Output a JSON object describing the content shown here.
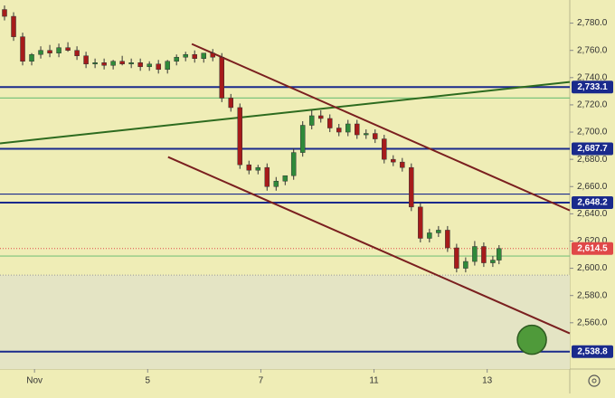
{
  "chart_data": {
    "type": "candlestick",
    "x": [
      -0.53,
      -0.37,
      -0.21,
      -0.05,
      0.11,
      0.27,
      0.43,
      0.59,
      0.75,
      0.91,
      1.07,
      1.23,
      1.39,
      1.55,
      1.71,
      1.87,
      2.03,
      2.19,
      2.35,
      2.51,
      2.67,
      2.83,
      2.99,
      3.15,
      3.31,
      3.47,
      3.63,
      3.79,
      3.95,
      4.11,
      4.27,
      4.43,
      4.58,
      4.74,
      4.9,
      5.06,
      5.22,
      5.38,
      5.54,
      5.7,
      5.86,
      6.02,
      6.18,
      6.34,
      6.5,
      6.66,
      6.82,
      6.98,
      7.14,
      7.3,
      7.46,
      7.62,
      7.78,
      7.94,
      8.1,
      8.21
    ],
    "open": [
      2790,
      2785,
      2770,
      2752,
      2757,
      2760,
      2758,
      2762,
      2760,
      2756,
      2750,
      2751,
      2749,
      2752,
      2750,
      2751,
      2748,
      2750,
      2746,
      2752,
      2755,
      2757,
      2754,
      2758,
      2755,
      2725,
      2718,
      2676,
      2672,
      2674,
      2660,
      2664,
      2668,
      2685,
      2705,
      2712,
      2710,
      2703,
      2700,
      2706,
      2698,
      2699,
      2695,
      2680,
      2678,
      2674,
      2645,
      2622,
      2626,
      2628,
      2615,
      2600,
      2605,
      2616,
      2604,
      2606
    ],
    "high": [
      2793,
      2788,
      2773,
      2758,
      2763,
      2764,
      2765,
      2766,
      2763,
      2759,
      2754,
      2754,
      2753,
      2756,
      2754,
      2754,
      2752,
      2753,
      2753,
      2757,
      2759,
      2760,
      2758,
      2761,
      2758,
      2728,
      2721,
      2679,
      2676,
      2677,
      2667,
      2668,
      2688,
      2708,
      2716,
      2716,
      2713,
      2706,
      2709,
      2709,
      2702,
      2702,
      2698,
      2683,
      2681,
      2677,
      2648,
      2629,
      2631,
      2631,
      2618,
      2608,
      2620,
      2619,
      2609,
      2617
    ],
    "low": [
      2782,
      2767,
      2749,
      2749,
      2754,
      2755,
      2755,
      2759,
      2753,
      2747,
      2747,
      2746,
      2746,
      2749,
      2747,
      2745,
      2745,
      2743,
      2743,
      2749,
      2752,
      2751,
      2751,
      2752,
      2722,
      2715,
      2673,
      2669,
      2669,
      2657,
      2657,
      2661,
      2665,
      2682,
      2702,
      2707,
      2700,
      2697,
      2697,
      2695,
      2695,
      2692,
      2677,
      2675,
      2671,
      2642,
      2619,
      2619,
      2623,
      2612,
      2597,
      2597,
      2602,
      2601,
      2601,
      2603
    ],
    "close": [
      2785,
      2770,
      2752,
      2757,
      2760,
      2758,
      2762,
      2760,
      2756,
      2750,
      2751,
      2749,
      2752,
      2750,
      2751,
      2748,
      2750,
      2746,
      2752,
      2755,
      2757,
      2754,
      2758,
      2755,
      2725,
      2718,
      2676,
      2672,
      2674,
      2660,
      2664,
      2668,
      2685,
      2705,
      2712,
      2710,
      2703,
      2700,
      2706,
      2698,
      2699,
      2695,
      2680,
      2678,
      2674,
      2645,
      2622,
      2626,
      2628,
      2615,
      2600,
      2605,
      2616,
      2604,
      2606,
      2614.5
    ],
    "up_color": "#2f8a3a",
    "down_color": "#a61b1b",
    "xlim": [
      -0.61,
      9.46
    ],
    "ylim": [
      2526,
      2797
    ],
    "xticks": [
      {
        "value": 0,
        "label": "Nov"
      },
      {
        "value": 2,
        "label": "5"
      },
      {
        "value": 4,
        "label": "7"
      },
      {
        "value": 6,
        "label": "11"
      },
      {
        "value": 8,
        "label": "13"
      }
    ],
    "yticks": [
      {
        "value": 2560,
        "label": "2,560.0"
      },
      {
        "value": 2580,
        "label": "2,580.0"
      },
      {
        "value": 2600,
        "label": "2,600.0"
      },
      {
        "value": 2620,
        "label": "2,620.0"
      },
      {
        "value": 2640,
        "label": "2,640.0"
      },
      {
        "value": 2660,
        "label": "2,660.0"
      },
      {
        "value": 2680,
        "label": "2,680.0"
      },
      {
        "value": 2700,
        "label": "2,700.0"
      },
      {
        "value": 2720,
        "label": "2,720.0"
      },
      {
        "value": 2740,
        "label": "2,740.0"
      },
      {
        "value": 2760,
        "label": "2,760.0"
      },
      {
        "value": 2780,
        "label": "2,780.0"
      }
    ],
    "levels": [
      {
        "value": 2733.1,
        "label": "2,733.1",
        "color": "#1a2a8c"
      },
      {
        "value": 2687.7,
        "label": "2,687.7",
        "color": "#1a2a8c"
      },
      {
        "value": 2648.2,
        "label": "2,648.2",
        "color": "#1a2a8c"
      },
      {
        "value": 2538.8,
        "label": "2,538.8",
        "color": "#1a2a8c"
      }
    ],
    "hlines": [
      {
        "value": 2654.5,
        "color": "#1a2a8c"
      },
      {
        "value": 2725,
        "color": "#7cc47c"
      },
      {
        "value": 2609,
        "color": "#7cc47c"
      }
    ],
    "price": {
      "value": 2614.5,
      "label": "2,614.5",
      "color": "#e04848"
    },
    "shade_below": 2595,
    "trendlines": [
      {
        "x": [
          -0.61,
          9.46
        ],
        "y": [
          2691.7,
          2736.8
        ],
        "color": "#2d6b1f"
      },
      {
        "x": [
          2.78,
          9.46
        ],
        "y": [
          2764.7,
          2642.5
        ],
        "color": "#7a1f1f"
      },
      {
        "x": [
          2.36,
          9.46
        ],
        "y": [
          2681.7,
          2552.2
        ],
        "color": "#7a1f1f"
      }
    ],
    "marker": {
      "x": 8.79,
      "y": 2547.5,
      "color": "#4f9a3a"
    }
  }
}
